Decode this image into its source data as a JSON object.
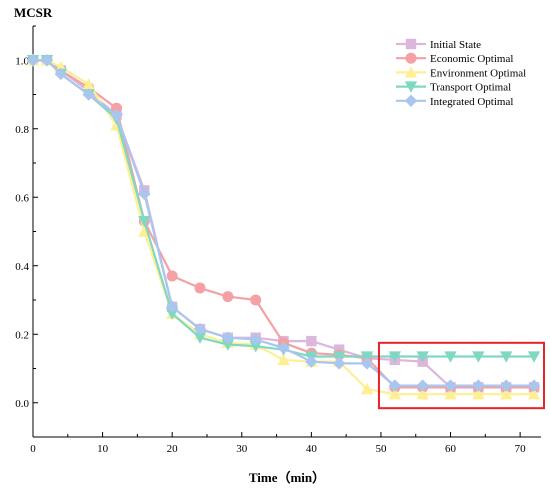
{
  "chart_data": {
    "type": "line",
    "title": "",
    "ylabel": "MCSR",
    "xlabel": "Time（min）",
    "xlim": [
      0,
      73
    ],
    "ylim": [
      -0.1,
      1.1
    ],
    "x_ticks": [
      0,
      10,
      20,
      30,
      40,
      50,
      60,
      70
    ],
    "y_ticks": [
      0.0,
      0.2,
      0.4,
      0.6,
      0.8,
      1.0
    ],
    "x_tick_labels": [
      "0",
      "10",
      "20",
      "30",
      "40",
      "50",
      "60",
      "70"
    ],
    "y_tick_labels": [
      "0.0",
      "0.2",
      "0.4",
      "0.6",
      "0.8",
      "1.0"
    ],
    "grid": false,
    "legend_position": "top-right",
    "highlight_box": {
      "x0": 50,
      "x1": 74,
      "y0": -0.01,
      "y1": 0.175,
      "color": "#e8202a"
    },
    "series": [
      {
        "name": "Initial State",
        "color": "#dcb6dc",
        "marker": "square",
        "x": [
          0,
          2,
          4,
          8,
          12,
          16,
          20,
          24,
          28,
          32,
          36,
          40,
          44,
          48,
          52,
          56,
          60,
          64,
          68,
          72
        ],
        "y": [
          1.0,
          1.0,
          0.97,
          0.91,
          0.84,
          0.62,
          0.28,
          0.215,
          0.19,
          0.19,
          0.18,
          0.18,
          0.155,
          0.13,
          0.125,
          0.12,
          0.045,
          0.045,
          0.045,
          0.045
        ]
      },
      {
        "name": "Economic Optimal",
        "color": "#f4a0a4",
        "marker": "circle",
        "x": [
          0,
          2,
          4,
          8,
          12,
          16,
          20,
          24,
          28,
          32,
          36,
          40,
          44,
          48,
          52,
          56,
          60,
          64,
          68,
          72
        ],
        "y": [
          1.0,
          1.0,
          0.97,
          0.92,
          0.86,
          0.53,
          0.37,
          0.335,
          0.31,
          0.3,
          0.175,
          0.145,
          0.14,
          0.13,
          0.045,
          0.045,
          0.045,
          0.045,
          0.045,
          0.045
        ]
      },
      {
        "name": "Environment Optimal",
        "color": "#fef092",
        "marker": "triangle-up",
        "x": [
          0,
          2,
          4,
          8,
          12,
          16,
          20,
          24,
          28,
          32,
          36,
          40,
          44,
          48,
          52,
          56,
          60,
          64,
          68,
          72
        ],
        "y": [
          1.0,
          1.0,
          0.98,
          0.93,
          0.81,
          0.5,
          0.26,
          0.2,
          0.175,
          0.17,
          0.125,
          0.12,
          0.12,
          0.04,
          0.025,
          0.025,
          0.025,
          0.025,
          0.025,
          0.025
        ]
      },
      {
        "name": "Transport Optimal",
        "color": "#7fd8c2",
        "marker": "triangle-down",
        "x": [
          0,
          2,
          4,
          8,
          12,
          16,
          20,
          24,
          28,
          32,
          36,
          40,
          44,
          48,
          52,
          56,
          60,
          64,
          68,
          72
        ],
        "y": [
          1.0,
          1.0,
          0.96,
          0.9,
          0.83,
          0.53,
          0.26,
          0.19,
          0.17,
          0.165,
          0.155,
          0.135,
          0.135,
          0.135,
          0.135,
          0.135,
          0.135,
          0.135,
          0.135,
          0.135
        ]
      },
      {
        "name": "Integrated Optimal",
        "color": "#a9c6ef",
        "marker": "diamond",
        "x": [
          0,
          2,
          4,
          8,
          12,
          16,
          20,
          24,
          28,
          32,
          36,
          40,
          44,
          48,
          52,
          56,
          60,
          64,
          68,
          72
        ],
        "y": [
          1.0,
          1.0,
          0.96,
          0.9,
          0.84,
          0.61,
          0.28,
          0.215,
          0.19,
          0.185,
          0.16,
          0.12,
          0.115,
          0.115,
          0.05,
          0.05,
          0.05,
          0.05,
          0.05,
          0.05
        ]
      }
    ]
  }
}
